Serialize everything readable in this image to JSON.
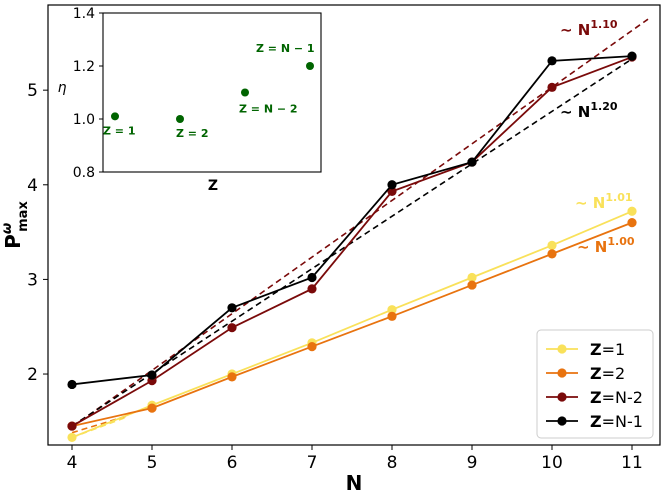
{
  "chart_data": {
    "main": {
      "type": "line",
      "xlabel": "N",
      "ylabel": "P^ω_max",
      "ylabel_base": "P",
      "ylabel_sup": "ω",
      "ylabel_sub": "max",
      "xlim": [
        3.7,
        11.35
      ],
      "ylim": [
        1.25,
        5.9
      ],
      "xticks": [
        4,
        5,
        6,
        7,
        8,
        9,
        10,
        11
      ],
      "yticks": [
        2,
        3,
        4,
        5
      ],
      "legend_position": "bottom-right",
      "series": [
        {
          "name": "Z=1",
          "legend_prefix": "Z",
          "legend_suffix": "=1",
          "color": "#f9e15a",
          "x": [
            4,
            5,
            6,
            7,
            8,
            9,
            10,
            11
          ],
          "y": [
            1.33,
            1.67,
            2.0,
            2.33,
            2.68,
            3.02,
            3.36,
            3.72
          ]
        },
        {
          "name": "Z=2",
          "legend_prefix": "Z",
          "legend_suffix": "=2",
          "color": "#e8730f",
          "x": [
            4,
            5,
            6,
            7,
            8,
            9,
            10,
            11
          ],
          "y": [
            1.45,
            1.64,
            1.97,
            2.29,
            2.61,
            2.94,
            3.27,
            3.6
          ]
        },
        {
          "name": "Z=N-2",
          "legend_prefix": "Z",
          "legend_suffix": "=N-2",
          "color": "#7a0a0a",
          "x": [
            4,
            5,
            6,
            7,
            8,
            9,
            10,
            11
          ],
          "y": [
            1.45,
            1.93,
            2.49,
            2.9,
            3.93,
            4.24,
            5.03,
            5.35
          ]
        },
        {
          "name": "Z=N-1",
          "legend_prefix": "Z",
          "legend_suffix": "=N-1",
          "color": "#000000",
          "x": [
            4,
            5,
            6,
            7,
            8,
            9,
            10,
            11
          ],
          "y": [
            1.89,
            1.99,
            2.7,
            3.02,
            4.0,
            4.24,
            5.31,
            5.36
          ]
        }
      ],
      "fits": [
        {
          "label_prefix": "∼ N",
          "exponent": "1.10",
          "color": "#7a0a0a",
          "x": [
            4,
            11.2
          ],
          "y": [
            1.44,
            5.75
          ]
        },
        {
          "label_prefix": "∼ N",
          "exponent": "1.20",
          "color": "#000000",
          "x": [
            4,
            11
          ],
          "y": [
            1.45,
            5.33
          ]
        },
        {
          "label_prefix": "∼ N",
          "exponent": "1.01",
          "color": "#f9e15a",
          "x": [
            4,
            4.7
          ],
          "y": [
            1.33,
            1.55
          ]
        },
        {
          "label_prefix": "∼ N",
          "exponent": "1.00",
          "color": "#e8730f",
          "x": [
            4,
            4.7
          ],
          "y": [
            1.38,
            1.56
          ]
        }
      ]
    },
    "inset": {
      "type": "scatter",
      "xlabel": "Z",
      "ylabel": "η",
      "ylim": [
        0.8,
        1.4
      ],
      "yticks": [
        "0.8",
        "1.0",
        "1.2",
        "1.4"
      ],
      "color": "#006400",
      "points": [
        {
          "label": "Z = 1",
          "x": 1,
          "y": 1.01
        },
        {
          "label": "Z = 2",
          "x": 2,
          "y": 1.0
        },
        {
          "label": "Z = N − 2",
          "x": 3,
          "y": 1.1
        },
        {
          "label": "Z = N − 1",
          "x": 4,
          "y": 1.2
        }
      ]
    }
  }
}
